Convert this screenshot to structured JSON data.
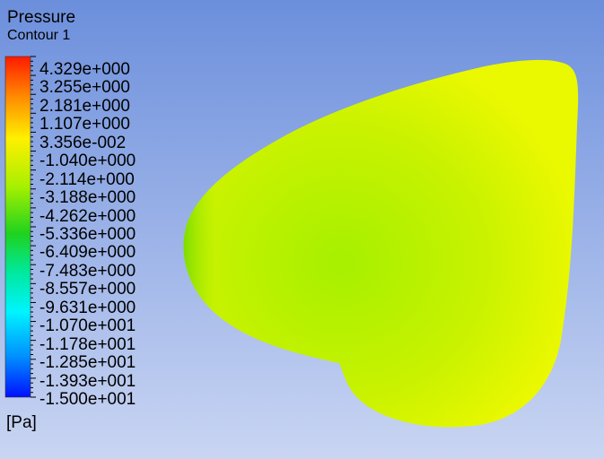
{
  "legend": {
    "title": "Pressure",
    "subtitle": "Contour 1",
    "labels": [
      "4.329e+000",
      "3.255e+000",
      "2.181e+000",
      "1.107e+000",
      "3.356e-002",
      "-1.040e+000",
      "-2.114e+000",
      "-3.188e+000",
      "-4.262e+000",
      "-5.336e+000",
      "-6.409e+000",
      "-7.483e+000",
      "-8.557e+000",
      "-9.631e+000",
      "-1.070e+001",
      "-1.178e+001",
      "-1.285e+001",
      "-1.393e+001",
      "-1.500e+001"
    ],
    "unit": "[Pa]"
  }
}
